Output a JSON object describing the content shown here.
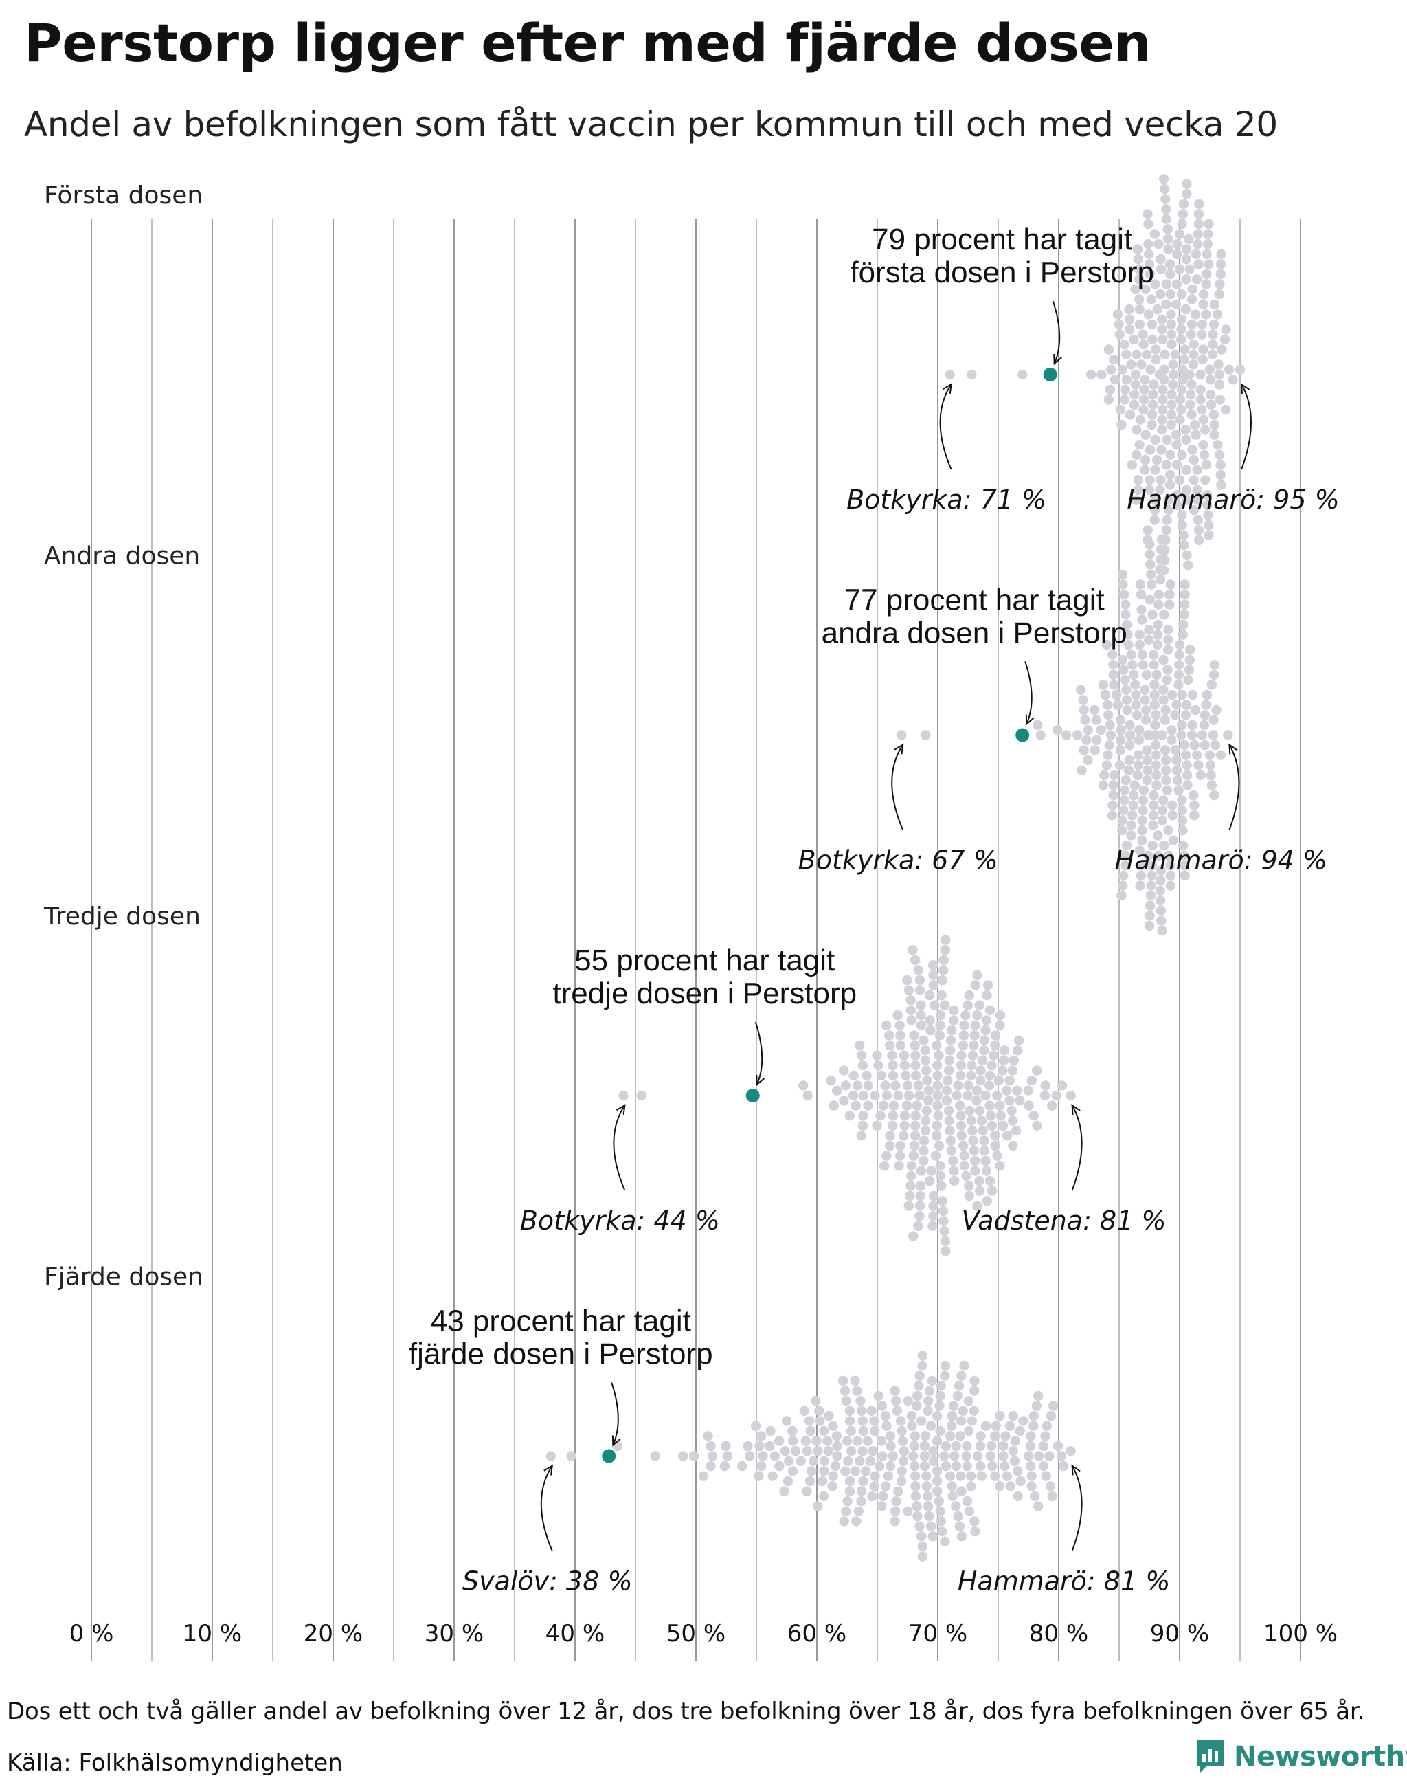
{
  "title": "Perstorp ligger efter med fjärde dosen",
  "subtitle": "Andel av befolkningen som fått vaccin per kommun till och med vecka 20",
  "footnote": "Dos ett och två gäller andel av befolkning över 12 år, dos tre befolkning över 18 år, dos fyra befolkningen över 65 år.",
  "source": "Källa: Folkhälsomyndigheten",
  "brand": "Newsworthy",
  "colors": {
    "highlight": "#178a80",
    "dot": "#d2d1d8",
    "grid": "#999999",
    "text": "#111111",
    "brand": "#2a8c80"
  },
  "chart_data": {
    "type": "scatter",
    "subtype": "beeswarm",
    "title": "Perstorp ligger efter med fjärde dosen",
    "xlabel": "",
    "ylabel": "",
    "xlim": [
      0,
      100
    ],
    "x_ticks": [
      0,
      10,
      20,
      30,
      40,
      50,
      60,
      70,
      80,
      90,
      100
    ],
    "x_tick_labels": [
      "0 %",
      "10 %",
      "20 %",
      "30 %",
      "40 %",
      "50 %",
      "60 %",
      "70 %",
      "80 %",
      "90 %",
      "100 %"
    ],
    "grid": true,
    "panels": [
      {
        "name": "Första dosen",
        "highlight": {
          "kommun": "Perstorp",
          "value": 79.3,
          "label": [
            "79 procent har tagit",
            "första dosen i Perstorp"
          ]
        },
        "min": {
          "kommun": "Botkyrka",
          "value": 71,
          "label": "Botkyrka: 71 %"
        },
        "max": {
          "kommun": "Hammarö",
          "value": 95,
          "label": "Hammarö: 95 %"
        },
        "distribution": {
          "count": 290,
          "peak": 89.5,
          "sd": 2.6,
          "lower": 76.5,
          "upper": 94.5
        },
        "outliers_low": [
          71,
          72.8,
          77
        ]
      },
      {
        "name": "Andra dosen",
        "highlight": {
          "kommun": "Perstorp",
          "value": 77,
          "label": [
            "77 procent har tagit",
            "andra dosen i Perstorp"
          ]
        },
        "min": {
          "kommun": "Botkyrka",
          "value": 67,
          "label": "Botkyrka: 67 %"
        },
        "max": {
          "kommun": "Hammarö",
          "value": 94,
          "label": "Hammarö: 94 %"
        },
        "distribution": {
          "count": 290,
          "peak": 88,
          "sd": 2.8,
          "lower": 75,
          "upper": 93.5
        },
        "outliers_low": [
          67,
          69
        ]
      },
      {
        "name": "Tredje dosen",
        "highlight": {
          "kommun": "Perstorp",
          "value": 54.7,
          "label": [
            "55 procent har tagit",
            "tredje dosen i Perstorp"
          ]
        },
        "min": {
          "kommun": "Botkyrka",
          "value": 44,
          "label": "Botkyrka: 44 %"
        },
        "max": {
          "kommun": "Vadstena",
          "value": 81,
          "label": "Vadstena: 81 %"
        },
        "distribution": {
          "count": 290,
          "peak": 70,
          "sd": 4.2,
          "lower": 50.5,
          "upper": 80.5
        },
        "outliers_low": [
          44,
          45.5
        ]
      },
      {
        "name": "Fjärde dosen",
        "highlight": {
          "kommun": "Perstorp",
          "value": 42.8,
          "label": [
            "43 procent har tagit",
            "fjärde dosen i Perstorp"
          ]
        },
        "min": {
          "kommun": "Svalöv",
          "value": 38,
          "label": "Svalöv: 38 %"
        },
        "max": {
          "kommun": "Hammarö",
          "value": 81,
          "label": "Hammarö: 81 %"
        },
        "distribution": {
          "count": 290,
          "peak": 68,
          "sd": 7.5,
          "lower": 43.5,
          "upper": 80.5
        },
        "outliers_low": [
          38,
          39.7,
          43.5
        ]
      }
    ]
  }
}
